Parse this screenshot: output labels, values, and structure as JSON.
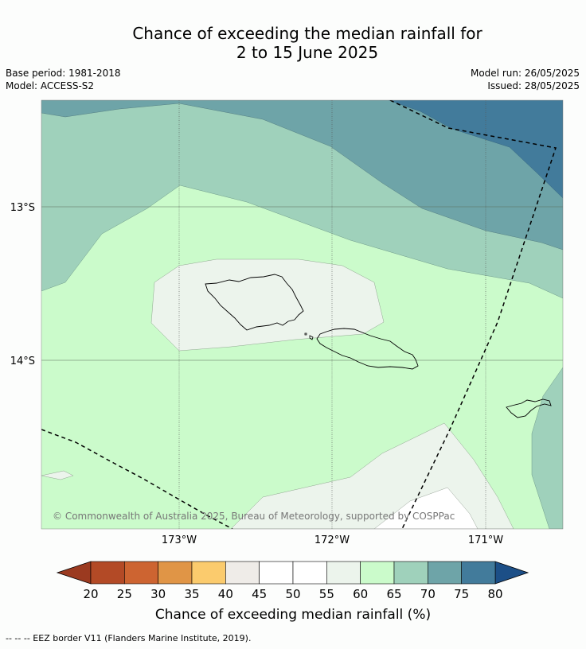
{
  "title_line1": "Chance of exceeding the median rainfall for",
  "title_line2": "2 to 15 June 2025",
  "meta": {
    "base_period": "Base period: 1981-2018",
    "model": "Model: ACCESS-S2",
    "model_run": "Model run: 26/05/2025",
    "issued": "Issued: 28/05/2025"
  },
  "map": {
    "lat_labels": [
      "13°S",
      "14°S"
    ],
    "lon_labels": [
      "173°W",
      "172°W",
      "171°W"
    ],
    "copyright": "© Commonwealth of Australia 2025, Bureau of Meteorology, supported by COSPPac"
  },
  "colorbar": {
    "ticks": [
      "20",
      "25",
      "30",
      "35",
      "40",
      "45",
      "50",
      "55",
      "60",
      "65",
      "70",
      "75",
      "80"
    ],
    "colors": [
      "#b34a26",
      "#cd6431",
      "#e09546",
      "#fbcb6d",
      "#efece8",
      "#ffffff",
      "#ffffff",
      "#ecf4ec",
      "#cbfbcb",
      "#9fd1bb",
      "#6ea4a8",
      "#427b9b"
    ],
    "under_color": "#9b3a20",
    "over_color": "#1c4f87",
    "label": "Chance of exceeding median rainfall (%)"
  },
  "footnote": "-- -- -- EEZ border V11 (Flanders Marine Institute, 2019)."
}
